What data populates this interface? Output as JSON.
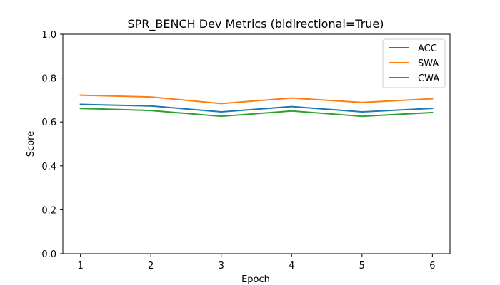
{
  "chart_data": {
    "type": "line",
    "title": "SPR_BENCH Dev Metrics (bidirectional=True)",
    "xlabel": "Epoch",
    "ylabel": "Score",
    "x": [
      1,
      2,
      3,
      4,
      5,
      6
    ],
    "xlim": [
      0.75,
      6.25
    ],
    "ylim": [
      0.0,
      1.0
    ],
    "xticks": [
      "1",
      "2",
      "3",
      "4",
      "5",
      "6"
    ],
    "yticks": [
      "0.0",
      "0.2",
      "0.4",
      "0.6",
      "0.8",
      "1.0"
    ],
    "grid": false,
    "legend_position": "upper-right",
    "series": [
      {
        "name": "ACC",
        "color": "#1f77b4",
        "values": [
          0.68,
          0.673,
          0.646,
          0.67,
          0.646,
          0.662
        ]
      },
      {
        "name": "SWA",
        "color": "#ff7f0e",
        "values": [
          0.722,
          0.714,
          0.684,
          0.709,
          0.689,
          0.706
        ]
      },
      {
        "name": "CWA",
        "color": "#2ca02c",
        "values": [
          0.662,
          0.652,
          0.626,
          0.65,
          0.626,
          0.643
        ]
      }
    ]
  }
}
